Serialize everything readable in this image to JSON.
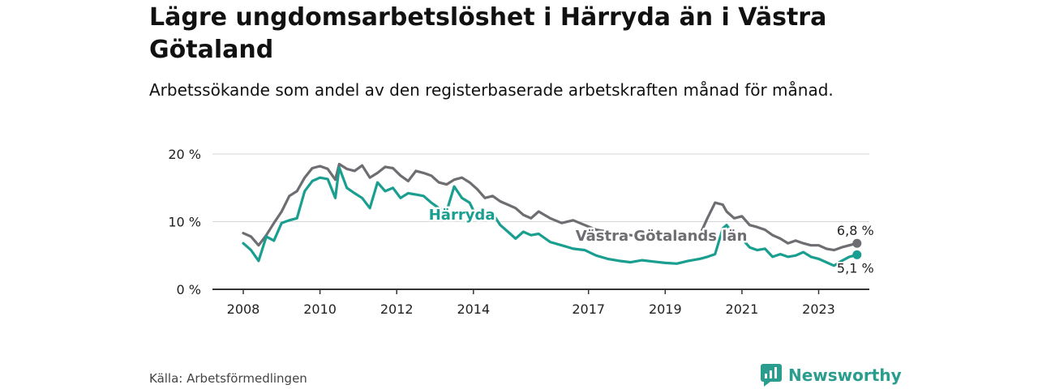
{
  "title": "Lägre ungdomsarbetslöshet i Härryda än i Västra Götaland",
  "subtitle": "Arbetssökande som andel av den registerbaserade arbetskraften månad för månad.",
  "source": "Källa: Arbetsförmedlingen",
  "brand": "Newsworthy",
  "colors": {
    "harryda": "#1a9e90",
    "vg": "#6d6d72",
    "grid": "#d6d6d6",
    "axis": "#333333"
  },
  "chart_data": {
    "type": "line",
    "title": "Lägre ungdomsarbetslöshet i Härryda än i Västra Götaland",
    "xlabel": "",
    "ylabel": "",
    "ylim": [
      0,
      20
    ],
    "xlim": [
      2008,
      2024.2
    ],
    "y_ticks": [
      0,
      10,
      20
    ],
    "y_tick_labels": [
      "0 %",
      "10 %",
      "20 %"
    ],
    "x_ticks": [
      2008,
      2010,
      2012,
      2014,
      2017,
      2019,
      2021,
      2023
    ],
    "x_tick_labels": [
      "2008",
      "2010",
      "2012",
      "2014",
      "2017",
      "2019",
      "2021",
      "2023"
    ],
    "grid": true,
    "series": [
      {
        "name": "Västra Götalands län",
        "color": "#6d6d72",
        "end_label": "6,8 %",
        "x": [
          2008.0,
          2008.2,
          2008.4,
          2008.6,
          2008.8,
          2009.0,
          2009.2,
          2009.4,
          2009.6,
          2009.8,
          2010.0,
          2010.2,
          2010.4,
          2010.5,
          2010.7,
          2010.9,
          2011.1,
          2011.3,
          2011.5,
          2011.7,
          2011.9,
          2012.1,
          2012.3,
          2012.5,
          2012.7,
          2012.9,
          2013.1,
          2013.3,
          2013.5,
          2013.7,
          2013.9,
          2014.1,
          2014.3,
          2014.5,
          2014.7,
          2014.9,
          2015.1,
          2015.3,
          2015.5,
          2015.7,
          2016.0,
          2016.3,
          2016.6,
          2016.9,
          2017.2,
          2017.5,
          2017.8,
          2018.1,
          2018.4,
          2018.7,
          2019.0,
          2019.3,
          2019.6,
          2019.9,
          2020.1,
          2020.3,
          2020.5,
          2020.6,
          2020.8,
          2021.0,
          2021.2,
          2021.4,
          2021.6,
          2021.8,
          2022.0,
          2022.2,
          2022.4,
          2022.6,
          2022.8,
          2023.0,
          2023.2,
          2023.4,
          2023.6,
          2023.8,
          2024.0
        ],
        "values": [
          8.3,
          7.8,
          6.5,
          8.0,
          9.8,
          11.5,
          13.8,
          14.5,
          16.5,
          17.9,
          18.2,
          17.8,
          16.2,
          18.5,
          17.8,
          17.5,
          18.3,
          16.5,
          17.2,
          18.1,
          17.9,
          16.8,
          16.0,
          17.5,
          17.2,
          16.8,
          15.8,
          15.5,
          16.2,
          16.5,
          15.8,
          14.8,
          13.5,
          13.8,
          13.0,
          12.5,
          12.0,
          11.0,
          10.5,
          11.5,
          10.5,
          9.8,
          10.2,
          9.5,
          8.8,
          8.5,
          8.2,
          8.0,
          7.8,
          7.5,
          7.3,
          7.6,
          7.5,
          8.0,
          10.5,
          12.8,
          12.5,
          11.5,
          10.5,
          10.8,
          9.5,
          9.2,
          8.8,
          8.0,
          7.5,
          6.8,
          7.2,
          6.8,
          6.5,
          6.5,
          6.0,
          5.8,
          6.2,
          6.5,
          6.8
        ]
      },
      {
        "name": "Härryda",
        "color": "#1a9e90",
        "end_label": "5,1 %",
        "x": [
          2008.0,
          2008.2,
          2008.4,
          2008.6,
          2008.8,
          2009.0,
          2009.2,
          2009.4,
          2009.6,
          2009.8,
          2010.0,
          2010.2,
          2010.4,
          2010.5,
          2010.7,
          2010.9,
          2011.1,
          2011.3,
          2011.5,
          2011.7,
          2011.9,
          2012.1,
          2012.3,
          2012.5,
          2012.7,
          2012.9,
          2013.1,
          2013.3,
          2013.5,
          2013.7,
          2013.9,
          2014.1,
          2014.3,
          2014.5,
          2014.7,
          2014.9,
          2015.1,
          2015.3,
          2015.5,
          2015.7,
          2016.0,
          2016.3,
          2016.6,
          2016.9,
          2017.2,
          2017.5,
          2017.8,
          2018.1,
          2018.4,
          2018.7,
          2019.0,
          2019.3,
          2019.6,
          2019.9,
          2020.1,
          2020.3,
          2020.5,
          2020.6,
          2020.8,
          2021.0,
          2021.2,
          2021.4,
          2021.6,
          2021.8,
          2022.0,
          2022.2,
          2022.4,
          2022.6,
          2022.8,
          2023.0,
          2023.2,
          2023.4,
          2023.6,
          2023.8,
          2024.0
        ],
        "values": [
          6.8,
          5.8,
          4.2,
          7.8,
          7.2,
          9.8,
          10.2,
          10.5,
          14.5,
          16.0,
          16.5,
          16.3,
          13.5,
          18.0,
          15.0,
          14.2,
          13.5,
          12.0,
          15.8,
          14.5,
          15.0,
          13.5,
          14.2,
          14.0,
          13.8,
          12.8,
          12.0,
          11.5,
          15.2,
          13.5,
          12.8,
          10.5,
          11.0,
          11.2,
          9.5,
          8.5,
          7.5,
          8.5,
          8.0,
          8.2,
          7.0,
          6.5,
          6.0,
          5.8,
          5.0,
          4.5,
          4.2,
          4.0,
          4.3,
          4.1,
          3.9,
          3.8,
          4.2,
          4.5,
          4.8,
          5.2,
          9.0,
          9.5,
          8.0,
          7.5,
          6.2,
          5.8,
          6.0,
          4.8,
          5.2,
          4.8,
          5.0,
          5.5,
          4.8,
          4.5,
          4.0,
          3.5,
          4.2,
          4.8,
          5.1
        ]
      }
    ],
    "annotations": [
      {
        "text": "Härryda",
        "x": 2013.7,
        "y": 10.3,
        "series": "Härryda"
      },
      {
        "text": "Västra Götalands län",
        "x": 2018.9,
        "y": 7.2,
        "series": "Västra Götalands län"
      }
    ]
  }
}
